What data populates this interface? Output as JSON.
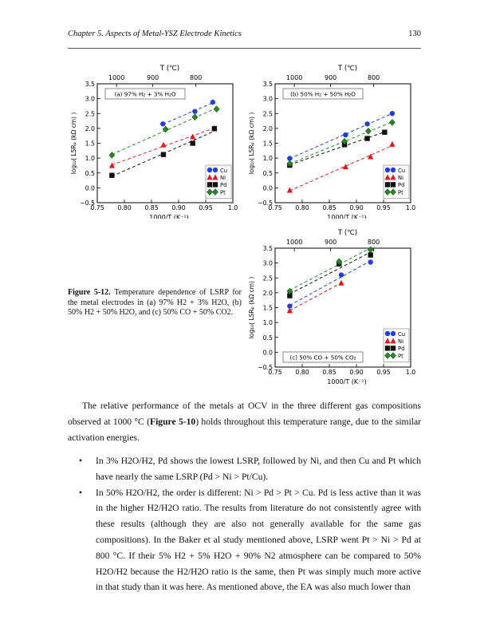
{
  "header": {
    "chapter": "Chapter 5. Aspects of Metal-YSZ Electrode Kinetics",
    "page_number": "130"
  },
  "caption": {
    "label": "Figure 5-12.",
    "text": "Temperature dependence of LSRP for the metal electrodes in (a) 97% H2 + 3% H2O, (b) 50% H2 + 50% H2O, and (c) 50% CO + 50% CO2."
  },
  "paragraph1": {
    "before": "The relative performance of the metals at OCV in the three different gas compositions observed at 1000 °C (",
    "ref": "Figure 5-10",
    "after": ") holds throughout this temperature range, due to the similar activation energies."
  },
  "bullets": [
    "In 3% H2O/H2, Pd shows the lowest LSRP, followed by Ni, and then Cu and Pt which have nearly the same LSRP (Pd > Ni > Pt/Cu).",
    "In 50% H2O/H2, the order is different: Ni > Pd > Pt > Cu. Pd is less active than it was in the higher H2/H2O ratio. The results from literature do not consistently agree with these results (although they are also not generally available for the same gas compositions). In the Baker et al study mentioned above, LSRP went Pt > Ni > Pd at 800 °C. If their 5% H2 + 5% H2O + 90% N2 atmosphere can be compared to 50% H2O/H2 because the H2/H2O ratio is the same, then Pt was simply much more active in that study than it was here. As mentioned above, the EA was also much lower than"
  ],
  "chart_data": [
    {
      "type": "scatter",
      "title": "(a) 97% H₂ + 3% H₂O",
      "xlabel": "1000/T (K⁻¹)",
      "ylabel": "log₁₀( LSRₚ (kΩ cm) )",
      "top_axis_label": "T (℃)",
      "top_ticks": [
        "1000",
        "900",
        "800"
      ],
      "xlim": [
        0.75,
        1.0
      ],
      "ylim": [
        -0.5,
        3.5
      ],
      "xticks": [
        "0.75",
        "0.80",
        "0.85",
        "0.90",
        "0.95",
        "1.0"
      ],
      "yticks": [
        "−0.5",
        "0.0",
        "0.5",
        "1.0",
        "1.5",
        "2.0",
        "2.5",
        "3.0",
        "3.5"
      ],
      "legend": "bottom-right",
      "series": [
        {
          "name": "Cu",
          "color": "#1f3fe0",
          "marker": "circle",
          "x": [
            0.871,
            0.93,
            0.963
          ],
          "y": [
            2.15,
            2.57,
            2.88
          ]
        },
        {
          "name": "Ni",
          "color": "#e3161c",
          "marker": "triangle",
          "x": [
            0.777,
            0.872,
            0.926,
            0.966
          ],
          "y": [
            0.75,
            1.45,
            1.72,
            2.01
          ]
        },
        {
          "name": "Pd",
          "color": "#111111",
          "marker": "square",
          "x": [
            0.777,
            0.872,
            0.926,
            0.966
          ],
          "y": [
            0.42,
            1.12,
            1.5,
            1.99
          ]
        },
        {
          "name": "Pt",
          "color": "#1e8c1e",
          "marker": "diamond",
          "x": [
            0.777,
            0.876,
            0.93,
            0.97
          ],
          "y": [
            1.1,
            1.97,
            2.38,
            2.65
          ]
        }
      ]
    },
    {
      "type": "scatter",
      "title": "(b) 50% H₂ + 50% H₂O",
      "xlabel": "1000/T (K⁻¹)",
      "ylabel": "log₁₀( LSRₚ (kΩ cm) )",
      "top_axis_label": "T (℃)",
      "top_ticks": [
        "1000",
        "900",
        "800"
      ],
      "xlim": [
        0.75,
        1.0
      ],
      "ylim": [
        -0.5,
        3.5
      ],
      "xticks": [
        "0.75",
        "0.80",
        "0.85",
        "0.90",
        "0.95",
        "1.0"
      ],
      "yticks": [
        "−0.5",
        "0.0",
        "0.5",
        "1.0",
        "1.5",
        "2.0",
        "2.5",
        "3.0",
        "3.5"
      ],
      "legend": "bottom-right",
      "series": [
        {
          "name": "Cu",
          "color": "#1f3fe0",
          "marker": "circle",
          "x": [
            0.777,
            0.88,
            0.92,
            0.966
          ],
          "y": [
            0.99,
            1.78,
            2.15,
            2.5
          ]
        },
        {
          "name": "Ni",
          "color": "#e3161c",
          "marker": "triangle",
          "x": [
            0.777,
            0.88,
            0.926,
            0.966
          ],
          "y": [
            -0.08,
            0.71,
            1.05,
            1.47
          ]
        },
        {
          "name": "Pd",
          "color": "#111111",
          "marker": "square",
          "x": [
            0.777,
            0.878,
            0.92,
            0.952
          ],
          "y": [
            0.76,
            1.45,
            1.66,
            1.87
          ]
        },
        {
          "name": "Pt",
          "color": "#1e8c1e",
          "marker": "diamond",
          "x": [
            0.777,
            0.878,
            0.922,
            0.966
          ],
          "y": [
            0.81,
            1.56,
            1.91,
            2.2
          ]
        }
      ]
    },
    {
      "type": "scatter",
      "title": "(c) 50% CO + 50% CO₂",
      "xlabel": "1000/T (K⁻¹)",
      "ylabel": "log₁₀( LSRₚ (kΩ cm) )",
      "top_axis_label": "T (℃)",
      "top_ticks": [
        "1000",
        "900",
        "800"
      ],
      "xlim": [
        0.75,
        1.0
      ],
      "ylim": [
        -0.5,
        3.5
      ],
      "xticks": [
        "0.75",
        "0.80",
        "0.85",
        "0.90",
        "0.95",
        "1.0"
      ],
      "yticks": [
        "−0.5",
        "0.0",
        "0.5",
        "1.0",
        "1.5",
        "2.0",
        "2.5",
        "3.0",
        "3.5"
      ],
      "legend": "bottom-right",
      "series": [
        {
          "name": "Cu",
          "color": "#1f3fe0",
          "marker": "circle",
          "x": [
            0.777,
            0.872,
            0.926
          ],
          "y": [
            1.55,
            2.6,
            3.03
          ]
        },
        {
          "name": "Ni",
          "color": "#e3161c",
          "marker": "triangle",
          "x": [
            0.777,
            0.872
          ],
          "y": [
            1.4,
            2.33
          ]
        },
        {
          "name": "Pd",
          "color": "#111111",
          "marker": "square",
          "x": [
            0.777,
            0.868,
            0.926
          ],
          "y": [
            1.9,
            2.97,
            3.27
          ]
        },
        {
          "name": "Pt",
          "color": "#1e8c1e",
          "marker": "diamond",
          "x": [
            0.777,
            0.868,
            0.926
          ],
          "y": [
            2.05,
            3.05,
            3.45
          ]
        }
      ]
    }
  ]
}
